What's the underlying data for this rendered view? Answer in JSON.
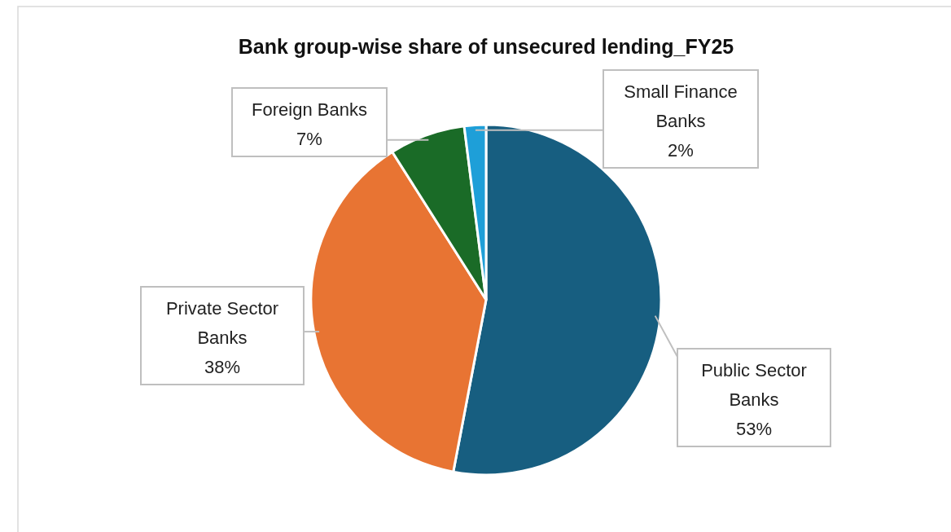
{
  "chart_data": {
    "type": "pie",
    "title": "Bank group-wise share of unsecured lending_FY25",
    "categories": [
      "Public Sector Banks",
      "Private Sector Banks",
      "Foreign Banks",
      "Small Finance Banks"
    ],
    "values": [
      53,
      38,
      7,
      2
    ],
    "colors": [
      "#175e80",
      "#e87433",
      "#1a6b27",
      "#1e9fd8"
    ],
    "value_labels": [
      "53%",
      "38%",
      "7%",
      "2%"
    ]
  }
}
